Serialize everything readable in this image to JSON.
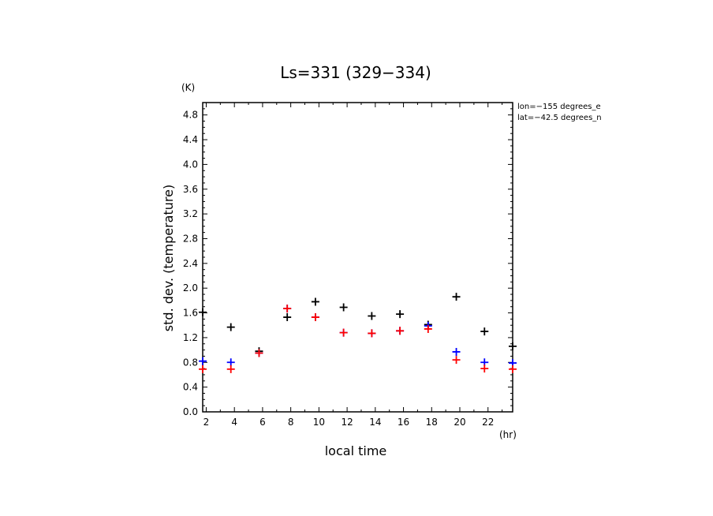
{
  "chart_data": {
    "type": "scatter",
    "title": "Ls=331 (329−334)",
    "xlabel": "local time",
    "ylabel": "std. dev. (temperature)",
    "y_unit": "(K)",
    "x_unit": "(hr)",
    "annotations": [
      "lon=−155 degrees_e",
      "lat=−42.5 degrees_n"
    ],
    "xlim": [
      1.75,
      23.75
    ],
    "ylim": [
      0.0,
      5.0
    ],
    "x_ticks": [
      2,
      4,
      6,
      8,
      10,
      12,
      14,
      16,
      18,
      20,
      22
    ],
    "y_ticks": [
      0.0,
      0.4,
      0.8,
      1.2,
      1.6,
      2.0,
      2.4,
      2.8,
      3.2,
      3.6,
      4.0,
      4.4,
      4.8
    ],
    "y_tick_labels": [
      "0.0",
      "0.4",
      "0.8",
      "1.2",
      "1.6",
      "2.0",
      "2.4",
      "2.8",
      "3.2",
      "3.6",
      "4.0",
      "4.4",
      "4.8"
    ],
    "grid": false,
    "legend": "none",
    "series": [
      {
        "color": "#000000",
        "x": [
          1.75,
          3.75,
          5.75,
          7.75,
          9.75,
          11.75,
          13.75,
          15.75,
          17.75,
          19.75,
          21.75,
          23.75
        ],
        "values": [
          1.61,
          1.37,
          0.98,
          1.53,
          1.78,
          1.69,
          1.55,
          1.58,
          1.41,
          1.86,
          1.3,
          1.06
        ]
      },
      {
        "color": "#0000ff",
        "x": [
          1.75,
          3.75,
          5.75,
          7.75,
          9.75,
          11.75,
          13.75,
          15.75,
          17.75,
          19.75,
          21.75,
          23.75
        ],
        "values": [
          0.82,
          0.8,
          0.95,
          1.67,
          1.53,
          1.28,
          1.27,
          1.31,
          1.39,
          0.97,
          0.8,
          0.79
        ]
      },
      {
        "color": "#ff0000",
        "x": [
          1.75,
          3.75,
          5.75,
          7.75,
          9.75,
          11.75,
          13.75,
          15.75,
          17.75,
          19.75,
          21.75,
          23.75
        ],
        "values": [
          0.69,
          0.69,
          0.95,
          1.67,
          1.53,
          1.28,
          1.27,
          1.31,
          1.34,
          0.84,
          0.7,
          0.69
        ]
      }
    ]
  }
}
